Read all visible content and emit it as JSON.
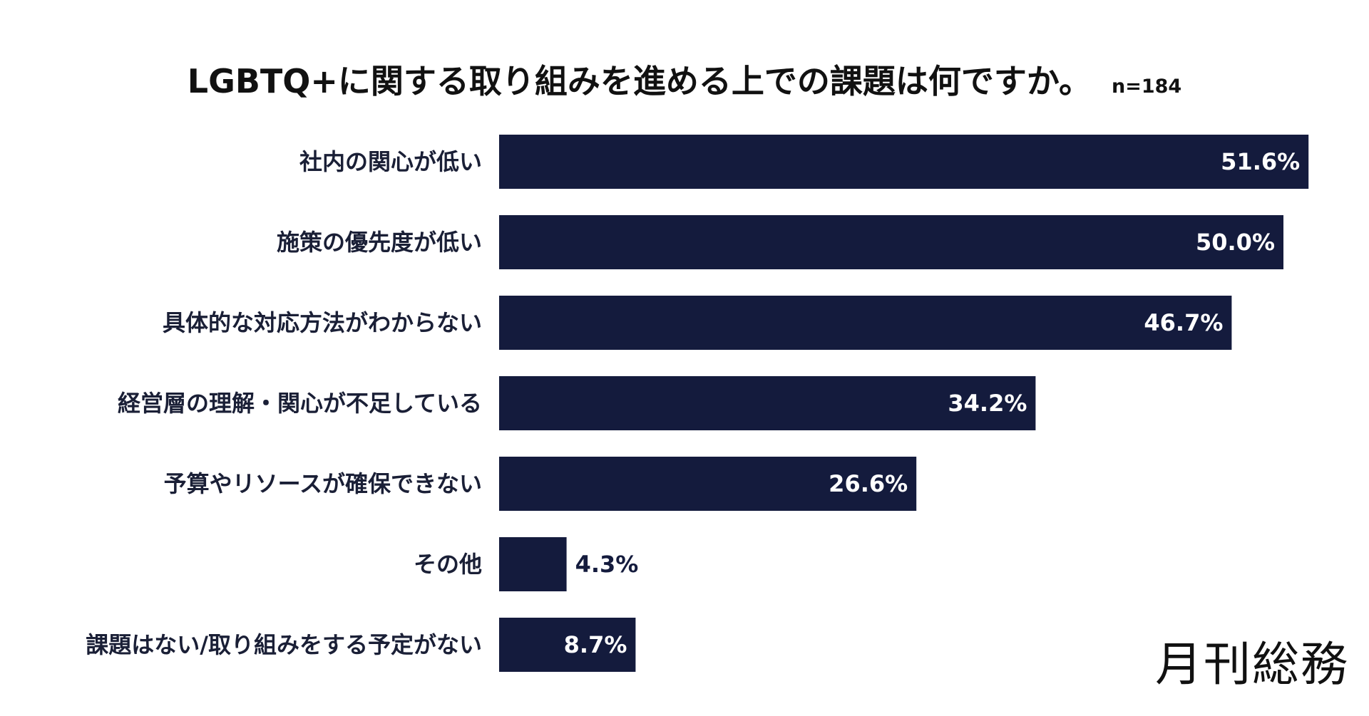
{
  "title": "LGBTQ+に関する取り組みを進める上での課題は何ですか。",
  "sample_size": "n=184",
  "brand": "月刊総務",
  "colors": {
    "bar": "#141b3d",
    "label_inside": "#ffffff",
    "label_outside": "#141b3d"
  },
  "chart_data": {
    "type": "bar",
    "orientation": "horizontal",
    "categories": [
      "社内の関心が低い",
      "施策の優先度が低い",
      "具体的な対応方法がわからない",
      "経営層の理解・関心が不足している",
      "予算やリソースが確保できない",
      "その他",
      "課題はない/取り組みをする予定がない"
    ],
    "values": [
      51.6,
      50.0,
      46.7,
      34.2,
      26.6,
      4.3,
      8.7
    ],
    "value_labels": [
      "51.6%",
      "50.0%",
      "46.7%",
      "34.2%",
      "26.6%",
      "4.3%",
      "8.7%"
    ],
    "unit": "%",
    "grid": false,
    "legend": "none"
  }
}
